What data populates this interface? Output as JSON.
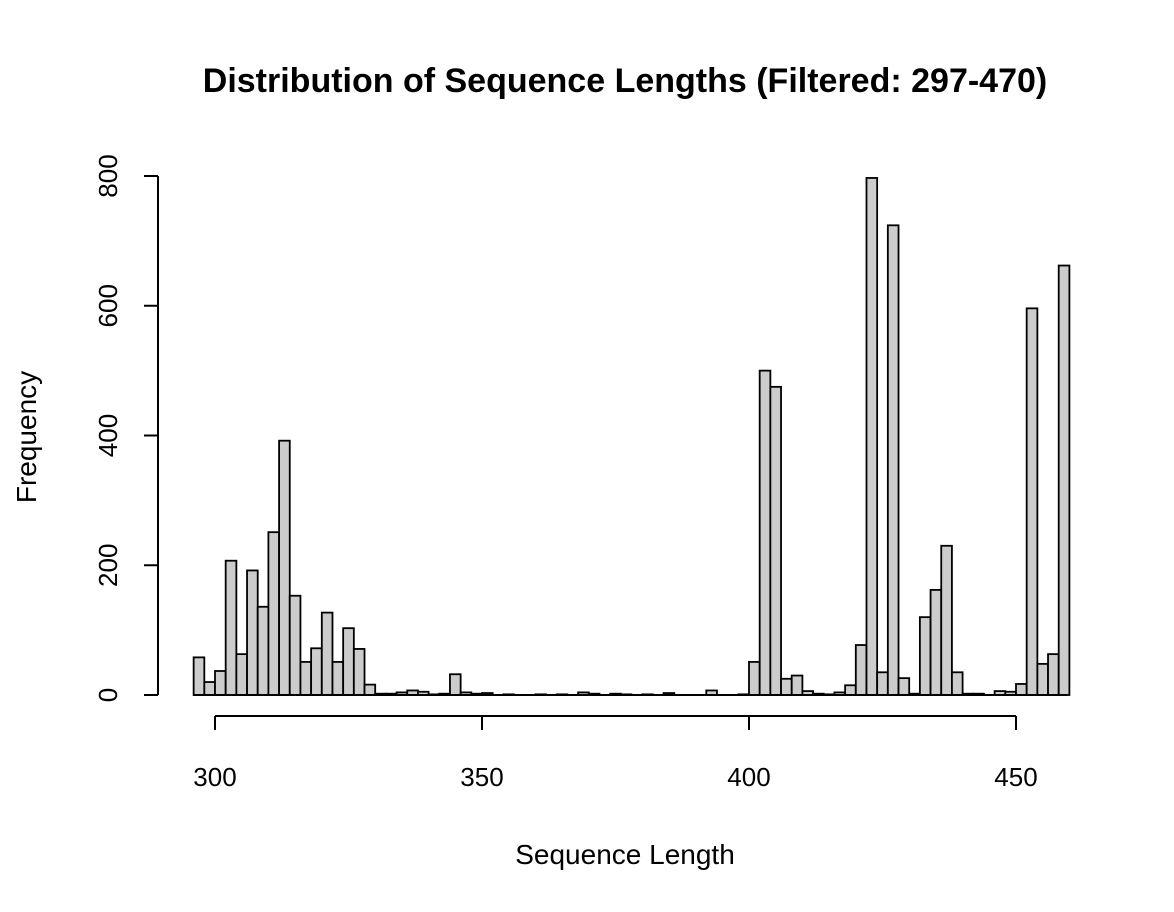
{
  "chart_data": {
    "type": "bar",
    "title": "Distribution of Sequence Lengths (Filtered: 297-470)",
    "xlabel": "Sequence Length",
    "ylabel": "Frequency",
    "bin_width": 2,
    "x_start": 296,
    "xlim": [
      296,
      458
    ],
    "ylim": [
      0,
      800
    ],
    "x_ticks": [
      300,
      350,
      400,
      450
    ],
    "y_ticks": [
      0,
      200,
      400,
      600,
      800
    ],
    "bar_fill": "#cccccc",
    "grid": false,
    "values": [
      58,
      20,
      37,
      207,
      63,
      192,
      136,
      251,
      392,
      153,
      51,
      72,
      127,
      51,
      103,
      71,
      16,
      2,
      2,
      4,
      7,
      5,
      1,
      2,
      32,
      4,
      2,
      3,
      0,
      1,
      0,
      0,
      1,
      0,
      1,
      0,
      4,
      2,
      0,
      2,
      1,
      0,
      1,
      0,
      3,
      0,
      0,
      0,
      7,
      0,
      0,
      1,
      51,
      500,
      475,
      25,
      30,
      6,
      2,
      1,
      4,
      15,
      77,
      797,
      35,
      724,
      26,
      2,
      120,
      162,
      230,
      35,
      2,
      2,
      0,
      6,
      5,
      17,
      596,
      48,
      63,
      662
    ]
  }
}
